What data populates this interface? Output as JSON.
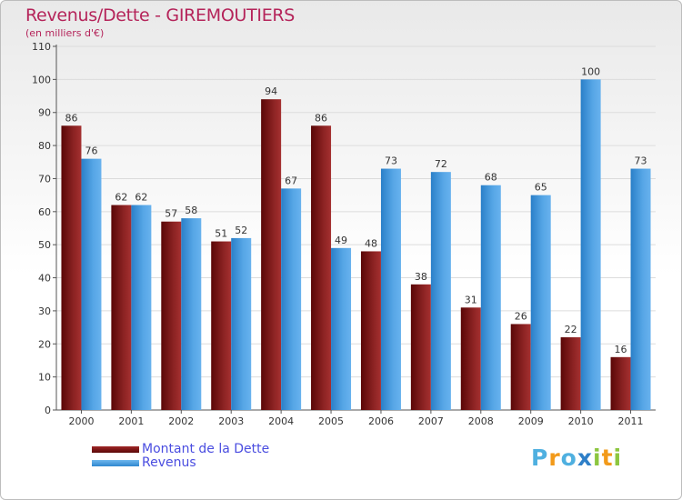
{
  "chart_data": {
    "type": "bar",
    "title": "Revenus/Dette - GIREMOUTIERS",
    "subtitle": "(en milliers d'€)",
    "categories": [
      "2000",
      "2001",
      "2002",
      "2003",
      "2004",
      "2005",
      "2006",
      "2007",
      "2008",
      "2009",
      "2010",
      "2011"
    ],
    "series": [
      {
        "name": "Montant de la Dette",
        "color": "#7a1515",
        "values": [
          86,
          62,
          57,
          51,
          94,
          86,
          48,
          38,
          31,
          26,
          22,
          16
        ]
      },
      {
        "name": "Revenus",
        "color": "#4f9fe0",
        "values": [
          76,
          62,
          58,
          52,
          67,
          49,
          73,
          72,
          68,
          65,
          100,
          73
        ]
      }
    ],
    "ylim": [
      0,
      110
    ],
    "yticks": [
      0,
      10,
      20,
      30,
      40,
      50,
      60,
      70,
      80,
      90,
      100,
      110
    ],
    "grid": true,
    "legend_position": "bottom-left"
  },
  "brand": {
    "letters": [
      "P",
      "r",
      "o",
      "x",
      "i",
      "t",
      "i"
    ],
    "colors": [
      "#4fb0e0",
      "#f29a1a",
      "#4fb0e0",
      "#2e7fc8",
      "#8cc63f",
      "#f29a1a",
      "#8cc63f"
    ]
  }
}
